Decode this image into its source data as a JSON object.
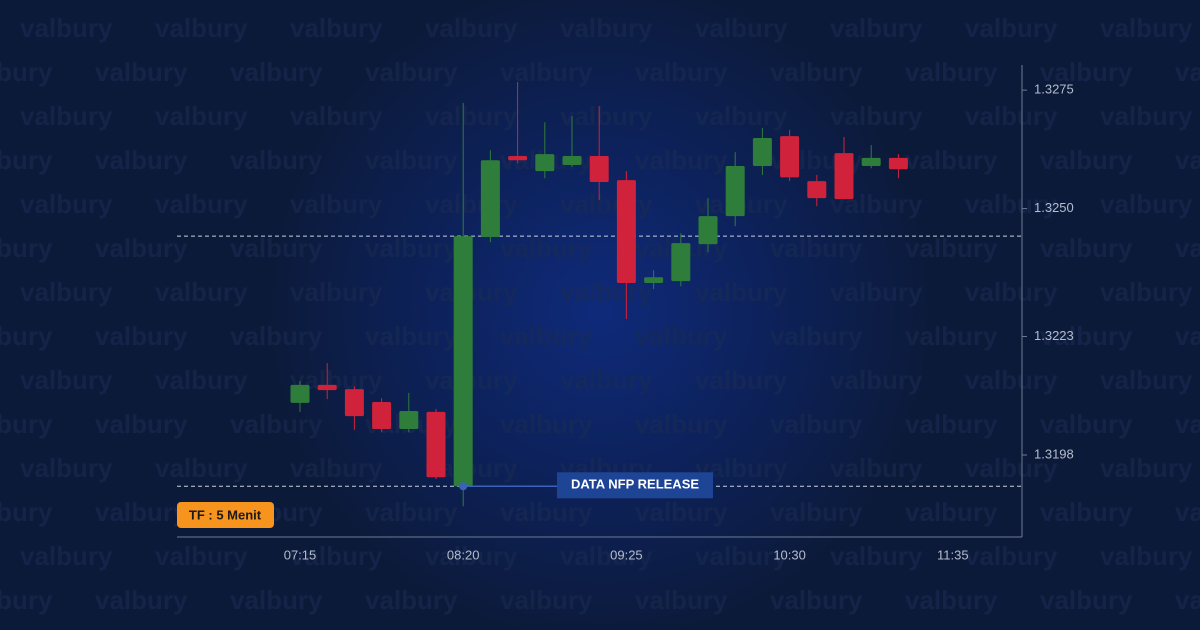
{
  "chart_data": {
    "type": "candlestick",
    "watermark": "valbury",
    "badge": "TF : 5 Menit",
    "annotation": "DATA NFP RELEASE",
    "categories": [
      "07:15",
      null,
      null,
      null,
      null,
      null,
      "08:20",
      null,
      null,
      null,
      null,
      null,
      "09:25",
      null,
      null,
      null,
      null,
      null,
      "10:30",
      null,
      null,
      null,
      null,
      null,
      "11:35"
    ],
    "open": [
      1.3209,
      1.32128,
      1.32119,
      1.32092,
      1.32035,
      1.32071,
      1.31914,
      1.3244,
      1.32611,
      1.32579,
      1.32592,
      1.32611,
      1.3256,
      1.32343,
      1.32347,
      1.32425,
      1.32484,
      1.3259,
      1.32653,
      1.32558,
      1.32617,
      1.3259,
      1.32607,
      null,
      null
    ],
    "high": [
      1.32136,
      1.32174,
      1.32125,
      1.321,
      1.32111,
      1.32077,
      1.32723,
      1.32623,
      1.32767,
      1.32682,
      1.32695,
      1.32716,
      1.32579,
      1.3237,
      1.32448,
      1.32522,
      1.32619,
      1.3267,
      1.32666,
      1.32571,
      1.32651,
      1.32634,
      1.32615,
      null,
      null
    ],
    "low": [
      1.32071,
      1.32098,
      1.32033,
      1.32028,
      1.32028,
      1.31929,
      1.31872,
      1.32429,
      1.32596,
      1.32564,
      1.32588,
      1.32518,
      1.32267,
      1.3233,
      1.32336,
      1.32408,
      1.32463,
      1.32571,
      1.32558,
      1.32505,
      1.3252,
      1.32585,
      1.32564,
      null,
      null
    ],
    "close": [
      1.32128,
      1.32117,
      1.32062,
      1.32035,
      1.32073,
      1.31933,
      1.32442,
      1.32602,
      1.32602,
      1.32615,
      1.32611,
      1.32556,
      1.32343,
      1.32355,
      1.32427,
      1.32484,
      1.3259,
      1.32649,
      1.32566,
      1.32522,
      1.3252,
      1.32607,
      1.32583,
      null,
      null
    ],
    "up_color": "#2f7d3a",
    "down_color": "#d0223a",
    "hlines": [
      1.32442,
      1.31914
    ],
    "ylim": [
      1.31807,
      1.32803
    ],
    "yticks": [
      {
        "value": 1.3275,
        "label": "1.3275"
      },
      {
        "value": 1.325,
        "label": "1.3250"
      },
      {
        "value": 1.3223,
        "label": "1.3223"
      },
      {
        "value": 1.3198,
        "label": "1.3198"
      }
    ]
  }
}
